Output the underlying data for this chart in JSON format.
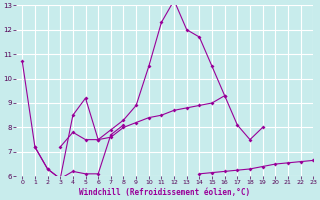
{
  "xlabel": "Windchill (Refroidissement éolien,°C)",
  "xlim": [
    -0.5,
    23
  ],
  "ylim": [
    6,
    13
  ],
  "xticks": [
    0,
    1,
    2,
    3,
    4,
    5,
    6,
    7,
    8,
    9,
    10,
    11,
    12,
    13,
    14,
    15,
    16,
    17,
    18,
    19,
    20,
    21,
    22,
    23
  ],
  "yticks": [
    6,
    7,
    8,
    9,
    10,
    11,
    12,
    13
  ],
  "background_color": "#c8ecec",
  "grid_color": "#ffffff",
  "line_color": "#990099",
  "line1_y": [
    10.7,
    7.2,
    6.3,
    5.9,
    8.5,
    9.2,
    7.5,
    7.9,
    8.3,
    8.9,
    10.5,
    12.3,
    13.2,
    12.0,
    11.7,
    10.5,
    9.3,
    null,
    null,
    null,
    null,
    null,
    null,
    null
  ],
  "line2_y": [
    null,
    7.2,
    6.3,
    5.9,
    6.2,
    6.1,
    6.1,
    7.7,
    8.1,
    null,
    null,
    null,
    null,
    null,
    6.1,
    6.15,
    6.2,
    6.25,
    6.3,
    6.4,
    6.5,
    6.55,
    6.6,
    6.65
  ],
  "line3_y": [
    null,
    null,
    null,
    7.2,
    7.8,
    7.5,
    7.5,
    7.6,
    8.0,
    8.2,
    8.4,
    8.5,
    8.7,
    8.8,
    8.9,
    9.0,
    9.3,
    8.1,
    7.5,
    8.0,
    null,
    null,
    null,
    null
  ]
}
